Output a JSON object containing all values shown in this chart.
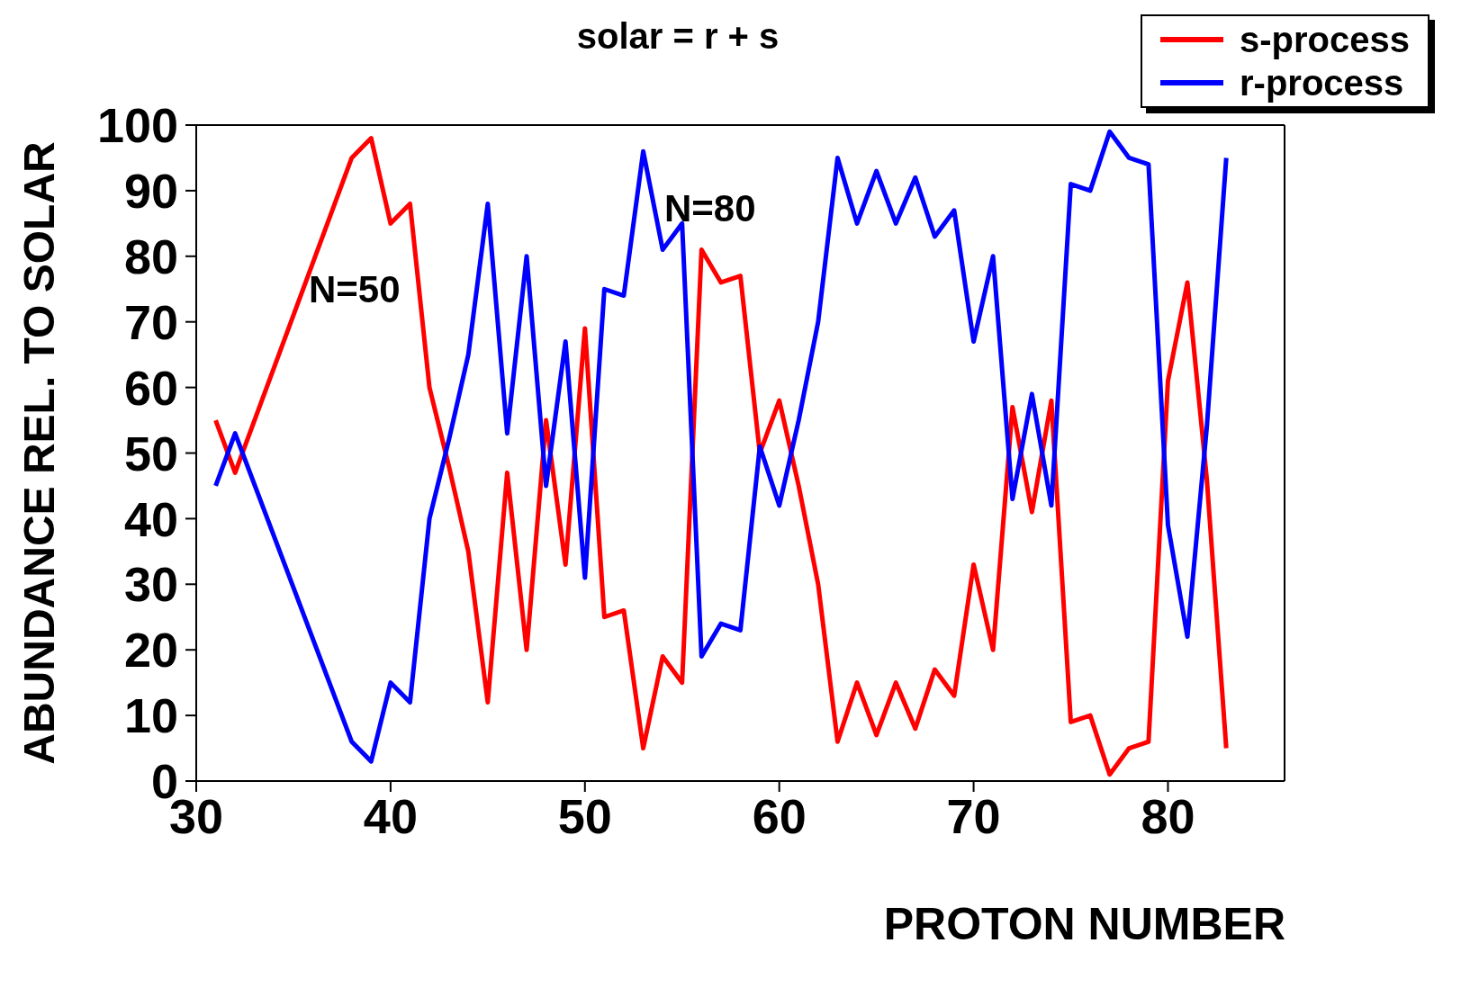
{
  "chart_data": {
    "type": "line",
    "title": "solar = r + s",
    "xlabel": "PROTON NUMBER",
    "ylabel": "ABUNDANCE REL. TO SOLAR",
    "x": [
      31,
      32,
      38,
      39,
      40,
      41,
      42,
      43,
      44,
      45,
      46,
      47,
      48,
      49,
      50,
      51,
      52,
      53,
      54,
      55,
      56,
      57,
      58,
      59,
      60,
      61,
      62,
      63,
      64,
      65,
      66,
      67,
      68,
      69,
      70,
      71,
      72,
      73,
      74,
      75,
      76,
      77,
      78,
      79,
      80,
      81,
      82,
      83
    ],
    "series": [
      {
        "name": "s-process",
        "color": "#ff0000",
        "values": [
          55,
          47,
          95,
          98,
          85,
          88,
          60,
          48,
          35,
          12,
          47,
          20,
          55,
          33,
          69,
          25,
          26,
          5,
          19,
          15,
          81,
          76,
          77,
          50,
          58,
          45,
          30,
          6,
          15,
          7,
          15,
          8,
          17,
          13,
          33,
          20,
          57,
          41,
          58,
          9,
          10,
          1,
          5,
          6,
          61,
          76,
          46,
          5
        ]
      },
      {
        "name": "r-process",
        "color": "#0000ff",
        "values": [
          45,
          53,
          6,
          3,
          15,
          12,
          40,
          52,
          65,
          88,
          53,
          80,
          45,
          67,
          31,
          75,
          74,
          96,
          81,
          85,
          19,
          24,
          23,
          51,
          42,
          55,
          70,
          95,
          85,
          93,
          85,
          92,
          83,
          87,
          67,
          80,
          43,
          59,
          42,
          91,
          90,
          99,
          95,
          94,
          39,
          22,
          54,
          95
        ]
      }
    ],
    "xlim": [
      30,
      86
    ],
    "xticks": [
      30,
      40,
      50,
      60,
      70,
      80
    ],
    "ylim": [
      0,
      100
    ],
    "yticks": [
      0,
      10,
      20,
      30,
      40,
      50,
      60,
      70,
      80,
      90,
      100
    ],
    "annotations": [
      "N=50",
      "N=80"
    ],
    "legend": "top right",
    "marker": "none",
    "line_style": "solid"
  }
}
